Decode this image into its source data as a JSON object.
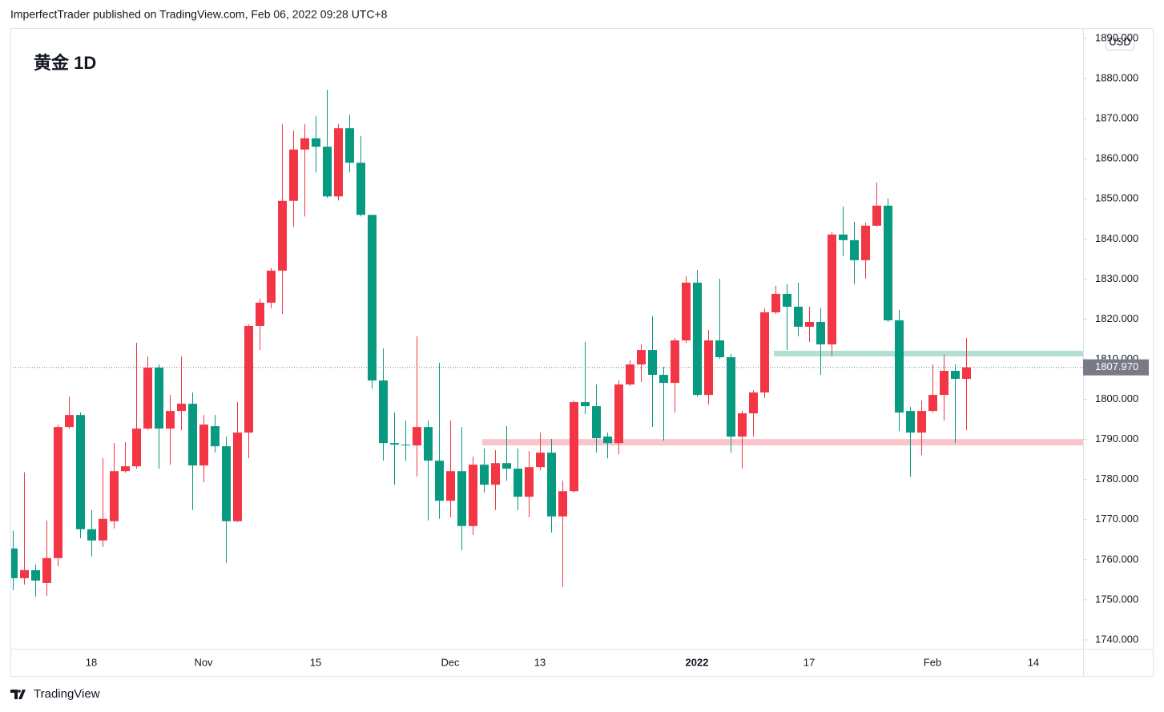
{
  "header": "ImperfectTrader published on TradingView.com, Feb 06, 2022 09:28 UTC+8",
  "footer": "TradingView",
  "chart_data": {
    "type": "candlestick",
    "title": "黄金 1D",
    "currency": "USD",
    "up_color": "#f23645",
    "down_color": "#089981",
    "categories": [
      null,
      null,
      null,
      null,
      null,
      null,
      null,
      "18",
      null,
      null,
      null,
      null,
      null,
      null,
      null,
      null,
      null,
      "Nov",
      null,
      null,
      null,
      null,
      null,
      null,
      null,
      null,
      null,
      "15",
      null,
      null,
      null,
      null,
      null,
      null,
      null,
      null,
      null,
      null,
      null,
      "Dec",
      null,
      null,
      null,
      null,
      null,
      null,
      null,
      "13",
      null,
      null,
      null,
      null,
      null,
      null,
      null,
      null,
      null,
      null,
      null,
      null,
      null,
      "2022",
      null,
      null,
      null,
      null,
      null,
      null,
      null,
      null,
      null,
      "17",
      null,
      null,
      null,
      null,
      null,
      null,
      null,
      null,
      null,
      null,
      "Feb",
      null,
      null,
      null,
      null,
      null,
      null,
      null,
      null,
      "14",
      null,
      null,
      null,
      null
    ],
    "candles": [
      [
        1762.8,
        1767.2,
        1752.4,
        1755.4
      ],
      [
        1755.4,
        1781.8,
        1753.8,
        1757.4
      ],
      [
        1757.4,
        1758.8,
        1750.8,
        1754.8
      ],
      [
        1754.2,
        1769.8,
        1751,
        1760.4
      ],
      [
        1760.4,
        1793.7,
        1758.4,
        1793.1
      ],
      [
        1793.1,
        1800.7,
        1792.7,
        1796.1
      ],
      [
        1796.1,
        1796.7,
        1765.4,
        1767.6
      ],
      [
        1767.6,
        1772.4,
        1760.8,
        1764.8
      ],
      [
        1764.8,
        1785.3,
        1763.2,
        1770.2
      ],
      [
        1769.6,
        1789.1,
        1767.8,
        1782.1
      ],
      [
        1782.1,
        1789.3,
        1781.7,
        1783.3
      ],
      [
        1783.3,
        1814.1,
        1782.7,
        1792.7
      ],
      [
        1792.7,
        1810.7,
        1792.3,
        1807.9
      ],
      [
        1807.9,
        1808.7,
        1782.7,
        1792.7
      ],
      [
        1792.7,
        1801.1,
        1783.7,
        1797.1
      ],
      [
        1797.1,
        1810.7,
        1792.3,
        1798.9
      ],
      [
        1798.9,
        1801.7,
        1772.4,
        1783.5
      ],
      [
        1783.5,
        1796.1,
        1779.3,
        1793.7
      ],
      [
        1793.3,
        1796.1,
        1786.7,
        1788.3
      ],
      [
        1788.3,
        1790.7,
        1759.2,
        1769.6
      ],
      [
        1769.6,
        1799.3,
        1769.4,
        1791.7
      ],
      [
        1791.7,
        1818.7,
        1785.3,
        1818.3
      ],
      [
        1818.3,
        1825.1,
        1812.3,
        1824.1
      ],
      [
        1824.1,
        1832.7,
        1822.7,
        1832.1
      ],
      [
        1832.1,
        1868.6,
        1821.3,
        1849.5
      ],
      [
        1849.5,
        1867,
        1843,
        1862.3
      ],
      [
        1862.3,
        1868.6,
        1845.6,
        1865.1
      ],
      [
        1865.1,
        1870.6,
        1856.6,
        1863
      ],
      [
        1863,
        1877.2,
        1850.2,
        1850.6
      ],
      [
        1850.6,
        1868.6,
        1849.6,
        1867.6
      ],
      [
        1867.6,
        1871,
        1856.6,
        1859
      ],
      [
        1859,
        1865.6,
        1845.6,
        1846
      ],
      [
        1846,
        1846,
        1802.7,
        1804.7
      ],
      [
        1804.7,
        1812.7,
        1784.7,
        1789.1
      ],
      [
        1789.1,
        1796.7,
        1778.7,
        1788.7
      ],
      [
        1788.7,
        1794.7,
        1784.7,
        1788.5
      ],
      [
        1788.5,
        1815.7,
        1780.7,
        1793.1
      ],
      [
        1793.1,
        1794.7,
        1769.8,
        1784.7
      ],
      [
        1784.7,
        1809.1,
        1770.2,
        1774.7
      ],
      [
        1774.7,
        1794.7,
        1770.6,
        1782.1
      ],
      [
        1782.1,
        1793.1,
        1762.4,
        1768.4
      ],
      [
        1768.4,
        1785.7,
        1766.2,
        1783.7
      ],
      [
        1783.7,
        1787.7,
        1776.7,
        1778.7
      ],
      [
        1778.7,
        1787.3,
        1772.4,
        1784.1
      ],
      [
        1784.1,
        1793.3,
        1779.7,
        1782.7
      ],
      [
        1782.7,
        1787.7,
        1772.4,
        1775.7
      ],
      [
        1775.7,
        1787.1,
        1770.6,
        1783.1
      ],
      [
        1783.1,
        1791.7,
        1782.3,
        1786.7
      ],
      [
        1786.7,
        1790.1,
        1766.8,
        1770.8
      ],
      [
        1770.8,
        1779.7,
        1753.2,
        1777.1
      ],
      [
        1777.1,
        1799.7,
        1776.7,
        1799.3
      ],
      [
        1799.3,
        1814.3,
        1796.3,
        1798.3
      ],
      [
        1798.3,
        1803.7,
        1786.7,
        1790.3
      ],
      [
        1790.7,
        1791.7,
        1785.3,
        1789.1
      ],
      [
        1789.1,
        1804.7,
        1786.3,
        1803.7
      ],
      [
        1803.7,
        1809.7,
        1803.3,
        1808.7
      ],
      [
        1808.7,
        1813.7,
        1804.3,
        1812.3
      ],
      [
        1812.3,
        1820.7,
        1793.1,
        1806.1
      ],
      [
        1806.1,
        1808.1,
        1789.7,
        1804.1
      ],
      [
        1804.1,
        1815.3,
        1796.7,
        1814.7
      ],
      [
        1814.7,
        1830.7,
        1814.1,
        1829.1
      ],
      [
        1829.1,
        1832.3,
        1800.7,
        1801.1
      ],
      [
        1801.1,
        1817.3,
        1798.7,
        1814.7
      ],
      [
        1814.7,
        1830.1,
        1810.1,
        1810.5
      ],
      [
        1810.5,
        1811.3,
        1786.7,
        1790.7
      ],
      [
        1790.7,
        1797.1,
        1782.7,
        1796.5
      ],
      [
        1796.5,
        1802.3,
        1790.7,
        1801.7
      ],
      [
        1801.7,
        1822.7,
        1800.3,
        1821.7
      ],
      [
        1821.7,
        1828.3,
        1821.3,
        1826.3
      ],
      [
        1826.3,
        1828.7,
        1812.3,
        1823.1
      ],
      [
        1823.1,
        1829.1,
        1815.7,
        1818.1
      ],
      [
        1818.1,
        1823.1,
        1814.3,
        1819.3
      ],
      [
        1819.3,
        1822.7,
        1806.1,
        1813.7
      ],
      [
        1813.7,
        1841.7,
        1810.7,
        1841.1
      ],
      [
        1841.1,
        1848.1,
        1835.7,
        1839.7
      ],
      [
        1839.7,
        1844.3,
        1828.7,
        1834.7
      ],
      [
        1834.7,
        1844.1,
        1830.1,
        1843.3
      ],
      [
        1843.3,
        1854.1,
        1843.1,
        1848.3
      ],
      [
        1848.3,
        1850.1,
        1819.3,
        1819.7
      ],
      [
        1819.7,
        1822.3,
        1792.1,
        1796.7
      ],
      [
        1797.1,
        1798.1,
        1780.7,
        1791.7
      ],
      [
        1791.7,
        1799.7,
        1786.1,
        1797.1
      ],
      [
        1797.1,
        1808.7,
        1796.7,
        1801.1
      ],
      [
        1801.1,
        1811.1,
        1794.7,
        1807.1
      ],
      [
        1807.1,
        1808.7,
        1789.1,
        1805.1
      ],
      [
        1805.1,
        1815.3,
        1792.3,
        1807.97
      ],
      null,
      null,
      null,
      null,
      null,
      null,
      null,
      null,
      null,
      null
    ],
    "last_price": {
      "value": 1807.97,
      "label": "1807.970"
    },
    "zones": [
      {
        "low": 1810.7,
        "high": 1812.1,
        "start_bar": 68,
        "color": "#b2dfd4"
      },
      {
        "low": 1788.5,
        "high": 1790.1,
        "start_bar": 42,
        "color": "#f9c4cb"
      }
    ],
    "ylim": [
      1737.8,
      1892.6
    ],
    "yticks": [
      {
        "value": 1740,
        "label": "1740.000"
      },
      {
        "value": 1750,
        "label": "1750.000"
      },
      {
        "value": 1760,
        "label": "1760.000"
      },
      {
        "value": 1770,
        "label": "1770.000"
      },
      {
        "value": 1780,
        "label": "1780.000"
      },
      {
        "value": 1790,
        "label": "1790.000"
      },
      {
        "value": 1800,
        "label": "1800.000"
      },
      {
        "value": 1810,
        "label": "1810.000"
      },
      {
        "value": 1820,
        "label": "1820.000"
      },
      {
        "value": 1830,
        "label": "1830.000"
      },
      {
        "value": 1840,
        "label": "1840.000"
      },
      {
        "value": 1850,
        "label": "1850.000"
      },
      {
        "value": 1860,
        "label": "1860.000"
      },
      {
        "value": 1870,
        "label": "1870.000"
      },
      {
        "value": 1880,
        "label": "1880.000"
      },
      {
        "value": 1890,
        "label": "1890.000"
      }
    ]
  }
}
